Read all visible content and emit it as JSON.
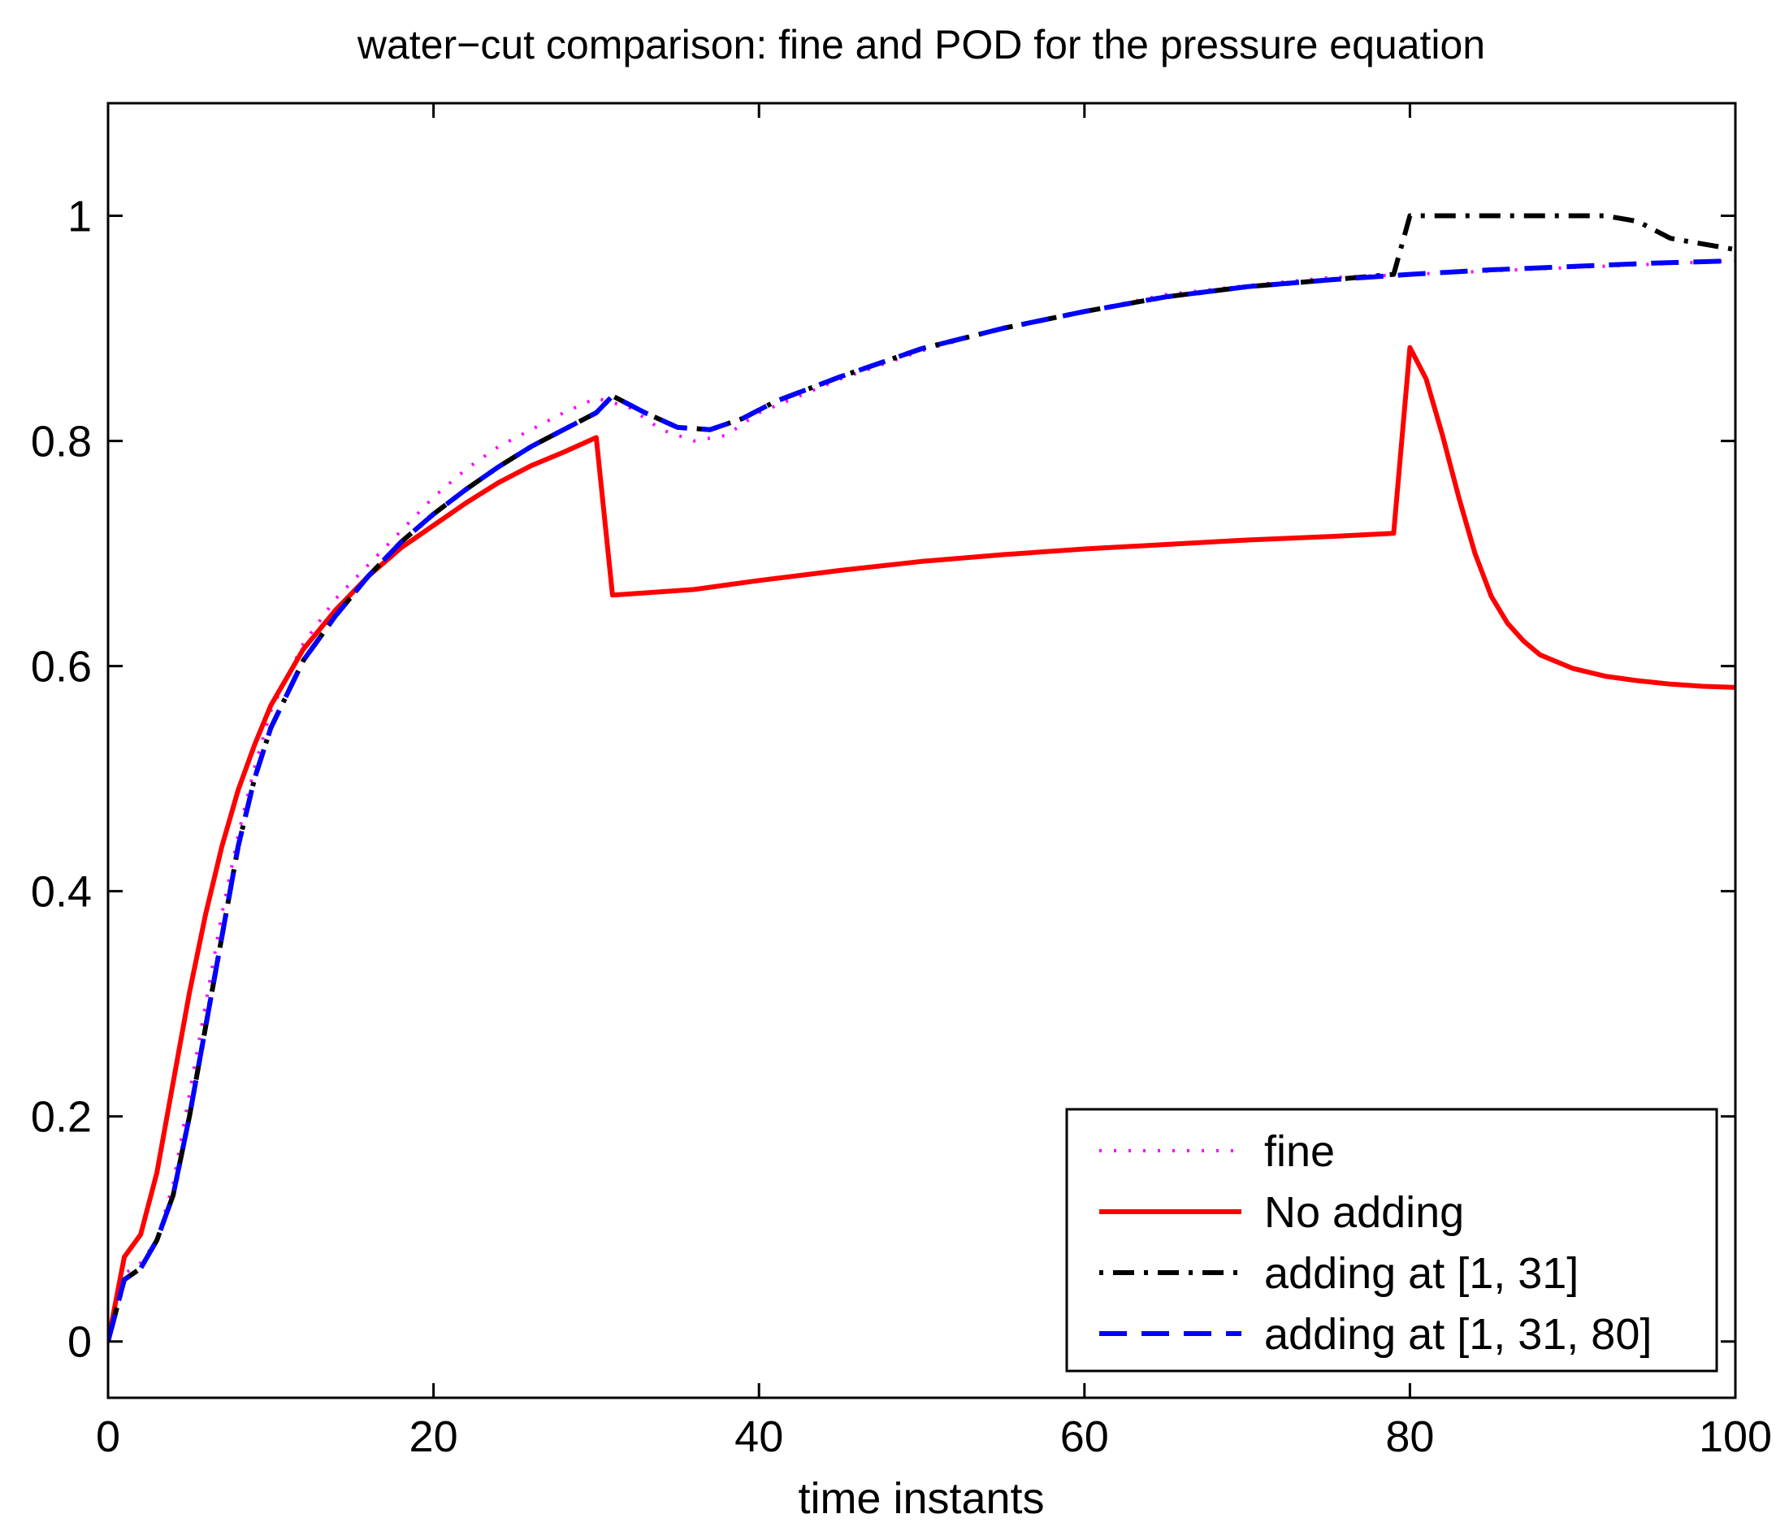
{
  "chart_data": {
    "type": "line",
    "title": "water−cut comparison: fine and POD for the pressure equation",
    "xlabel": "time instants",
    "ylabel": "",
    "xlim": [
      0,
      100
    ],
    "ylim": [
      -0.05,
      1.1
    ],
    "xticks": [
      0,
      20,
      40,
      60,
      80,
      100
    ],
    "xtick_labels": [
      "0",
      "20",
      "40",
      "60",
      "80",
      "100"
    ],
    "yticks": [
      0,
      0.2,
      0.4,
      0.6,
      0.8,
      1
    ],
    "ytick_labels": [
      "0",
      "0.2",
      "0.4",
      "0.6",
      "0.8",
      "1"
    ],
    "grid": false,
    "legend_position": "bottom-right",
    "series": [
      {
        "name": "fine",
        "color": "#ff00ff",
        "style": "dotted",
        "x": [
          0,
          1,
          2,
          3,
          4,
          5,
          6,
          7,
          8,
          9,
          10,
          12,
          14,
          16,
          18,
          20,
          22,
          24,
          26,
          28,
          30,
          32,
          34,
          36,
          38,
          40,
          45,
          50,
          55,
          60,
          65,
          70,
          75,
          80,
          85,
          90,
          95,
          100
        ],
        "y": [
          0.0,
          0.06,
          0.07,
          0.09,
          0.14,
          0.22,
          0.3,
          0.38,
          0.45,
          0.51,
          0.56,
          0.62,
          0.66,
          0.69,
          0.72,
          0.75,
          0.775,
          0.795,
          0.81,
          0.825,
          0.838,
          0.83,
          0.81,
          0.8,
          0.805,
          0.825,
          0.855,
          0.88,
          0.9,
          0.915,
          0.93,
          0.938,
          0.945,
          0.948,
          0.951,
          0.954,
          0.957,
          0.96
        ]
      },
      {
        "name": "No adding",
        "color": "#ff0000",
        "style": "solid",
        "x": [
          0,
          1,
          2,
          3,
          4,
          5,
          6,
          7,
          8,
          9,
          10,
          11,
          12,
          14,
          16,
          18,
          20,
          22,
          24,
          26,
          28,
          30,
          31,
          36,
          40,
          45,
          50,
          55,
          60,
          65,
          70,
          75,
          79,
          80,
          81,
          82,
          83,
          84,
          85,
          86,
          87,
          88,
          90,
          92,
          94,
          96,
          98,
          100
        ],
        "y": [
          0.0,
          0.075,
          0.095,
          0.15,
          0.23,
          0.31,
          0.38,
          0.44,
          0.49,
          0.53,
          0.565,
          0.59,
          0.615,
          0.65,
          0.68,
          0.705,
          0.725,
          0.745,
          0.763,
          0.778,
          0.79,
          0.803,
          0.663,
          0.668,
          0.676,
          0.685,
          0.693,
          0.699,
          0.704,
          0.708,
          0.712,
          0.715,
          0.718,
          0.883,
          0.855,
          0.805,
          0.75,
          0.7,
          0.662,
          0.638,
          0.622,
          0.61,
          0.598,
          0.591,
          0.587,
          0.584,
          0.582,
          0.581
        ]
      },
      {
        "name": "adding at [1, 31]",
        "color": "#000000",
        "style": "dashdot",
        "x": [
          0,
          1,
          2,
          3,
          4,
          5,
          6,
          7,
          8,
          9,
          10,
          12,
          14,
          16,
          18,
          20,
          22,
          24,
          26,
          28,
          30,
          31,
          33,
          35,
          37,
          39,
          41,
          45,
          50,
          55,
          60,
          65,
          70,
          75,
          79,
          80,
          82,
          85,
          88,
          90,
          92,
          94,
          96,
          98,
          100
        ],
        "y": [
          0.0,
          0.055,
          0.065,
          0.09,
          0.13,
          0.2,
          0.28,
          0.36,
          0.44,
          0.5,
          0.545,
          0.605,
          0.645,
          0.68,
          0.71,
          0.735,
          0.757,
          0.777,
          0.795,
          0.81,
          0.825,
          0.84,
          0.825,
          0.812,
          0.81,
          0.82,
          0.835,
          0.857,
          0.882,
          0.9,
          0.915,
          0.928,
          0.937,
          0.943,
          0.948,
          1.0,
          1.0,
          1.0,
          1.0,
          1.0,
          1.0,
          0.995,
          0.98,
          0.975,
          0.97
        ]
      },
      {
        "name": "adding at [1, 31, 80]",
        "color": "#0000ff",
        "style": "dashed",
        "x": [
          0,
          1,
          2,
          3,
          4,
          5,
          6,
          7,
          8,
          9,
          10,
          12,
          14,
          16,
          18,
          20,
          22,
          24,
          26,
          28,
          30,
          31,
          33,
          35,
          37,
          39,
          41,
          45,
          50,
          55,
          60,
          65,
          70,
          75,
          80,
          85,
          90,
          95,
          100
        ],
        "y": [
          0.0,
          0.055,
          0.065,
          0.09,
          0.13,
          0.2,
          0.28,
          0.36,
          0.44,
          0.5,
          0.545,
          0.605,
          0.645,
          0.68,
          0.71,
          0.735,
          0.757,
          0.777,
          0.795,
          0.81,
          0.825,
          0.84,
          0.825,
          0.812,
          0.81,
          0.82,
          0.835,
          0.857,
          0.882,
          0.9,
          0.915,
          0.928,
          0.937,
          0.943,
          0.948,
          0.952,
          0.955,
          0.958,
          0.96
        ]
      }
    ]
  }
}
